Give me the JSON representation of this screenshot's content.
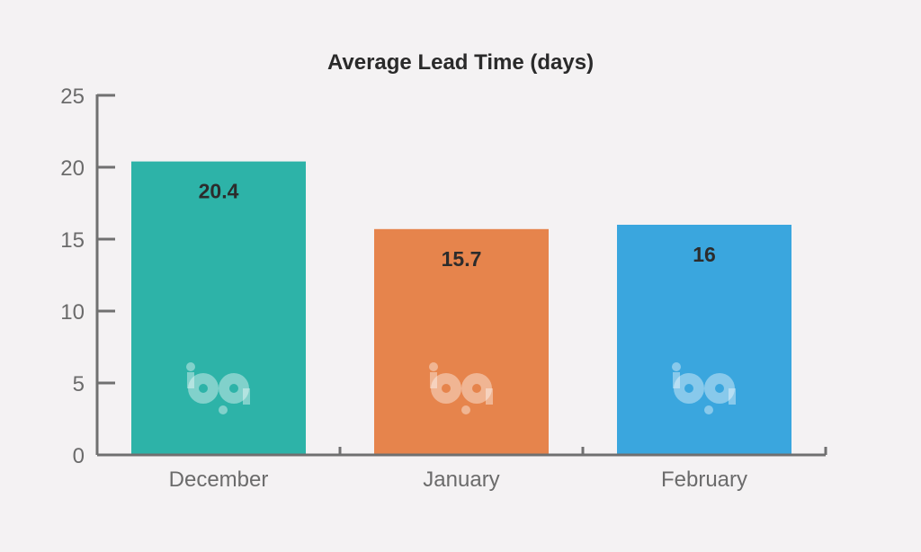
{
  "chart_data": {
    "type": "bar",
    "title": "Average Lead Time (days)",
    "xlabel": "",
    "ylabel": "",
    "categories": [
      "December",
      "January",
      "February"
    ],
    "values": [
      20.4,
      15.7,
      16
    ],
    "value_labels": [
      "20.4",
      "15.7",
      "16"
    ],
    "colors": [
      "#2db3a8",
      "#e6844c",
      "#3aa6de"
    ],
    "ylim": [
      0,
      25
    ],
    "yticks": [
      0,
      5,
      10,
      15,
      20,
      25
    ],
    "grid": false,
    "legend": "none",
    "logo": {
      "name": "bp-logo-watermark",
      "text": "bp"
    }
  }
}
